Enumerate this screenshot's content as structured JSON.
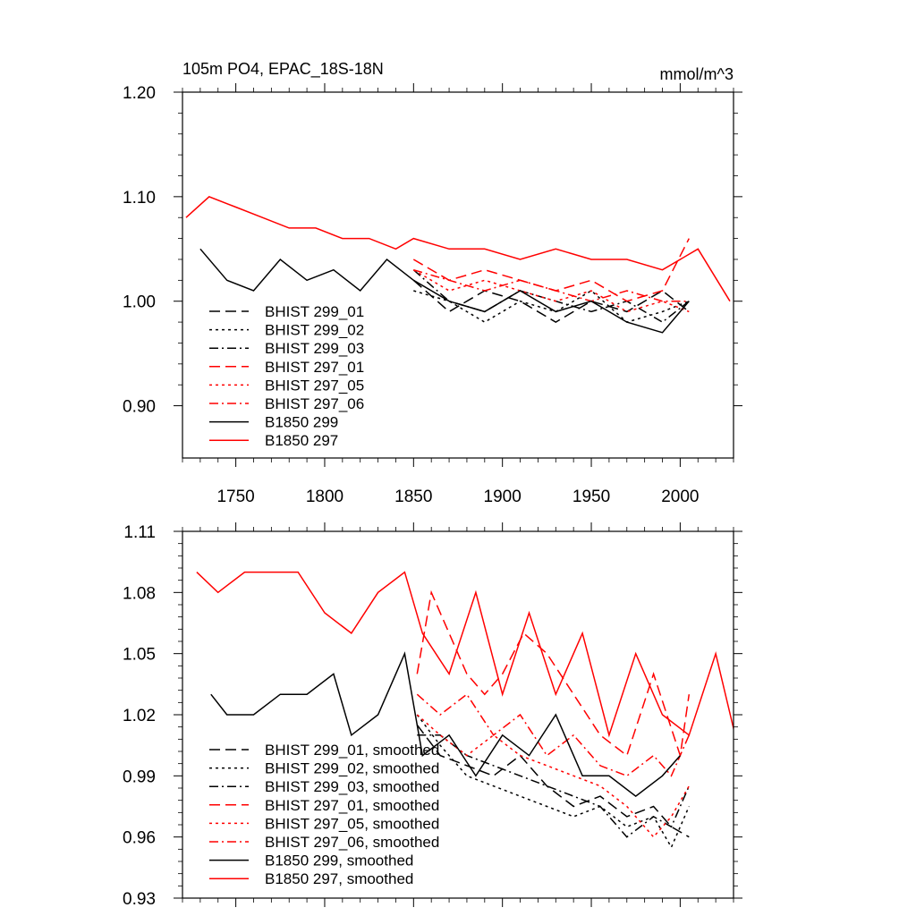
{
  "colors": {
    "black": "#000000",
    "red": "#ff0000",
    "background": "#ffffff"
  },
  "chart_data": [
    {
      "type": "line",
      "title": "105m PO4, EPAC_18S-18N",
      "units": "mmol/m^3",
      "xlim": [
        1720,
        2030
      ],
      "ylim": [
        0.85,
        1.2
      ],
      "yticks": [
        0.9,
        1.0,
        1.1,
        1.2
      ],
      "ytick_labels": [
        "0.90",
        "1.00",
        "1.10",
        "1.20"
      ],
      "xticks": [
        1750,
        1800,
        1850,
        1900,
        1950,
        2000
      ],
      "xtick_labels": [
        "1750",
        "1800",
        "1850",
        "1900",
        "1950",
        "2000"
      ],
      "grid": false,
      "legend_position": "bottom-left",
      "series": [
        {
          "name": "BHIST 299_01",
          "color": "#000000",
          "dash": "dash",
          "x": [
            1850,
            1870,
            1890,
            1910,
            1930,
            1950,
            1970,
            1990,
            2005
          ],
          "y": [
            1.02,
            0.99,
            1.01,
            1.0,
            0.98,
            1.0,
            0.99,
            1.01,
            0.99
          ]
        },
        {
          "name": "BHIST 299_02",
          "color": "#000000",
          "dash": "dot",
          "x": [
            1850,
            1870,
            1890,
            1910,
            1930,
            1950,
            1970,
            1990,
            2005
          ],
          "y": [
            1.01,
            1.0,
            0.98,
            1.0,
            0.99,
            1.01,
            0.98,
            0.99,
            1.0
          ]
        },
        {
          "name": "BHIST 299_03",
          "color": "#000000",
          "dash": "dashdot",
          "x": [
            1850,
            1870,
            1890,
            1910,
            1930,
            1950,
            1970,
            1990,
            2005
          ],
          "y": [
            1.03,
            1.0,
            0.99,
            1.01,
            1.0,
            0.99,
            1.0,
            0.98,
            1.0
          ]
        },
        {
          "name": "BHIST 297_01",
          "color": "#ff0000",
          "dash": "dash",
          "x": [
            1850,
            1870,
            1890,
            1910,
            1930,
            1950,
            1970,
            1990,
            2005
          ],
          "y": [
            1.04,
            1.02,
            1.03,
            1.02,
            1.01,
            1.02,
            1.0,
            1.01,
            1.06
          ]
        },
        {
          "name": "BHIST 297_05",
          "color": "#ff0000",
          "dash": "dot",
          "x": [
            1850,
            1870,
            1890,
            1910,
            1930,
            1950,
            1970,
            1990,
            2005
          ],
          "y": [
            1.03,
            1.01,
            1.02,
            1.01,
            1.0,
            1.01,
            0.99,
            1.0,
            0.99
          ]
        },
        {
          "name": "BHIST 297_06",
          "color": "#ff0000",
          "dash": "dashdot",
          "x": [
            1850,
            1870,
            1890,
            1910,
            1930,
            1950,
            1970,
            1990,
            2005
          ],
          "y": [
            1.03,
            1.02,
            1.01,
            1.02,
            1.01,
            1.0,
            1.01,
            1.0,
            1.0
          ]
        },
        {
          "name": "B1850 299",
          "color": "#000000",
          "dash": "solid",
          "x": [
            1730,
            1745,
            1760,
            1775,
            1790,
            1805,
            1820,
            1835,
            1850,
            1870,
            1890,
            1910,
            1930,
            1950,
            1970,
            1990,
            2005
          ],
          "y": [
            1.05,
            1.02,
            1.01,
            1.04,
            1.02,
            1.03,
            1.01,
            1.04,
            1.02,
            1.0,
            0.99,
            1.01,
            0.99,
            1.0,
            0.98,
            0.97,
            1.0
          ]
        },
        {
          "name": "B1850 297",
          "color": "#ff0000",
          "dash": "solid",
          "x": [
            1722,
            1735,
            1750,
            1765,
            1780,
            1795,
            1810,
            1825,
            1840,
            1850,
            1870,
            1890,
            1910,
            1930,
            1950,
            1970,
            1990,
            2010,
            2028
          ],
          "y": [
            1.08,
            1.1,
            1.09,
            1.08,
            1.07,
            1.07,
            1.06,
            1.06,
            1.05,
            1.06,
            1.05,
            1.05,
            1.04,
            1.05,
            1.04,
            1.04,
            1.03,
            1.05,
            1.0
          ]
        }
      ]
    },
    {
      "type": "line",
      "xlim": [
        1720,
        2030
      ],
      "ylim": [
        0.93,
        1.11
      ],
      "yticks": [
        0.93,
        0.96,
        0.99,
        1.02,
        1.05,
        1.08,
        1.11
      ],
      "ytick_labels": [
        "0.93",
        "0.96",
        "0.99",
        "1.02",
        "1.05",
        "1.08",
        "1.11"
      ],
      "xticks": [
        1750,
        1800,
        1850,
        1900,
        1950,
        2000
      ],
      "grid": false,
      "legend_position": "bottom-left",
      "series": [
        {
          "name": "BHIST 299_01, smoothed",
          "color": "#000000",
          "dash": "dash",
          "x": [
            1852,
            1865,
            1880,
            1895,
            1910,
            1925,
            1940,
            1955,
            1970,
            1985,
            1995,
            2005
          ],
          "y": [
            1.015,
            1.0,
            0.995,
            0.99,
            1.0,
            0.985,
            0.975,
            0.98,
            0.97,
            0.975,
            0.965,
            0.96
          ]
        },
        {
          "name": "BHIST 299_02, smoothed",
          "color": "#000000",
          "dash": "dot",
          "x": [
            1852,
            1865,
            1880,
            1895,
            1910,
            1925,
            1940,
            1955,
            1970,
            1985,
            1995,
            2005
          ],
          "y": [
            1.02,
            1.005,
            0.99,
            0.985,
            0.98,
            0.975,
            0.97,
            0.975,
            0.965,
            0.97,
            0.955,
            0.975
          ]
        },
        {
          "name": "BHIST 299_03, smoothed",
          "color": "#000000",
          "dash": "dashdot",
          "x": [
            1852,
            1865,
            1880,
            1895,
            1910,
            1925,
            1940,
            1955,
            1970,
            1985,
            1995,
            2005
          ],
          "y": [
            1.01,
            1.01,
            1.0,
            0.995,
            0.99,
            0.985,
            0.98,
            0.975,
            0.96,
            0.97,
            0.965,
            0.985
          ]
        },
        {
          "name": "BHIST 297_01, smoothed",
          "color": "#ff0000",
          "dash": "dash",
          "x": [
            1852,
            1860,
            1870,
            1880,
            1890,
            1900,
            1912,
            1925,
            1940,
            1955,
            1970,
            1985,
            2000,
            2005
          ],
          "y": [
            1.04,
            1.08,
            1.06,
            1.04,
            1.03,
            1.04,
            1.06,
            1.05,
            1.03,
            1.01,
            1.0,
            1.04,
            1.0,
            1.03
          ]
        },
        {
          "name": "BHIST 297_05, smoothed",
          "color": "#ff0000",
          "dash": "dot",
          "x": [
            1852,
            1865,
            1880,
            1895,
            1910,
            1925,
            1940,
            1955,
            1970,
            1985,
            1995,
            2005
          ],
          "y": [
            1.02,
            1.01,
            1.0,
            1.01,
            1.0,
            0.995,
            0.99,
            0.985,
            0.975,
            0.96,
            0.97,
            0.985
          ]
        },
        {
          "name": "BHIST 297_06, smoothed",
          "color": "#ff0000",
          "dash": "dashdot",
          "x": [
            1852,
            1865,
            1880,
            1895,
            1910,
            1925,
            1940,
            1955,
            1970,
            1985,
            1995,
            2005
          ],
          "y": [
            1.03,
            1.02,
            1.03,
            1.01,
            1.02,
            1.0,
            1.01,
            0.995,
            0.99,
            1.0,
            0.99,
            1.01
          ]
        },
        {
          "name": "B1850 299, smoothed",
          "color": "#000000",
          "dash": "solid",
          "x": [
            1736,
            1745,
            1760,
            1775,
            1790,
            1805,
            1815,
            1830,
            1845,
            1855,
            1870,
            1885,
            1900,
            1915,
            1930,
            1945,
            1960,
            1975,
            1990,
            2000
          ],
          "y": [
            1.03,
            1.02,
            1.02,
            1.03,
            1.03,
            1.04,
            1.01,
            1.02,
            1.05,
            1.0,
            1.01,
            0.99,
            1.01,
            1.0,
            1.02,
            0.99,
            0.99,
            0.98,
            0.99,
            1.0
          ]
        },
        {
          "name": "B1850 297, smoothed",
          "color": "#ff0000",
          "dash": "solid",
          "x": [
            1728,
            1740,
            1755,
            1770,
            1785,
            1800,
            1815,
            1830,
            1845,
            1855,
            1870,
            1885,
            1900,
            1915,
            1930,
            1945,
            1960,
            1975,
            1990,
            2005,
            2020,
            2035
          ],
          "y": [
            1.09,
            1.08,
            1.09,
            1.09,
            1.09,
            1.07,
            1.06,
            1.08,
            1.09,
            1.06,
            1.04,
            1.08,
            1.03,
            1.07,
            1.03,
            1.06,
            1.01,
            1.05,
            1.02,
            1.01,
            1.05,
            0.995
          ]
        }
      ]
    }
  ]
}
